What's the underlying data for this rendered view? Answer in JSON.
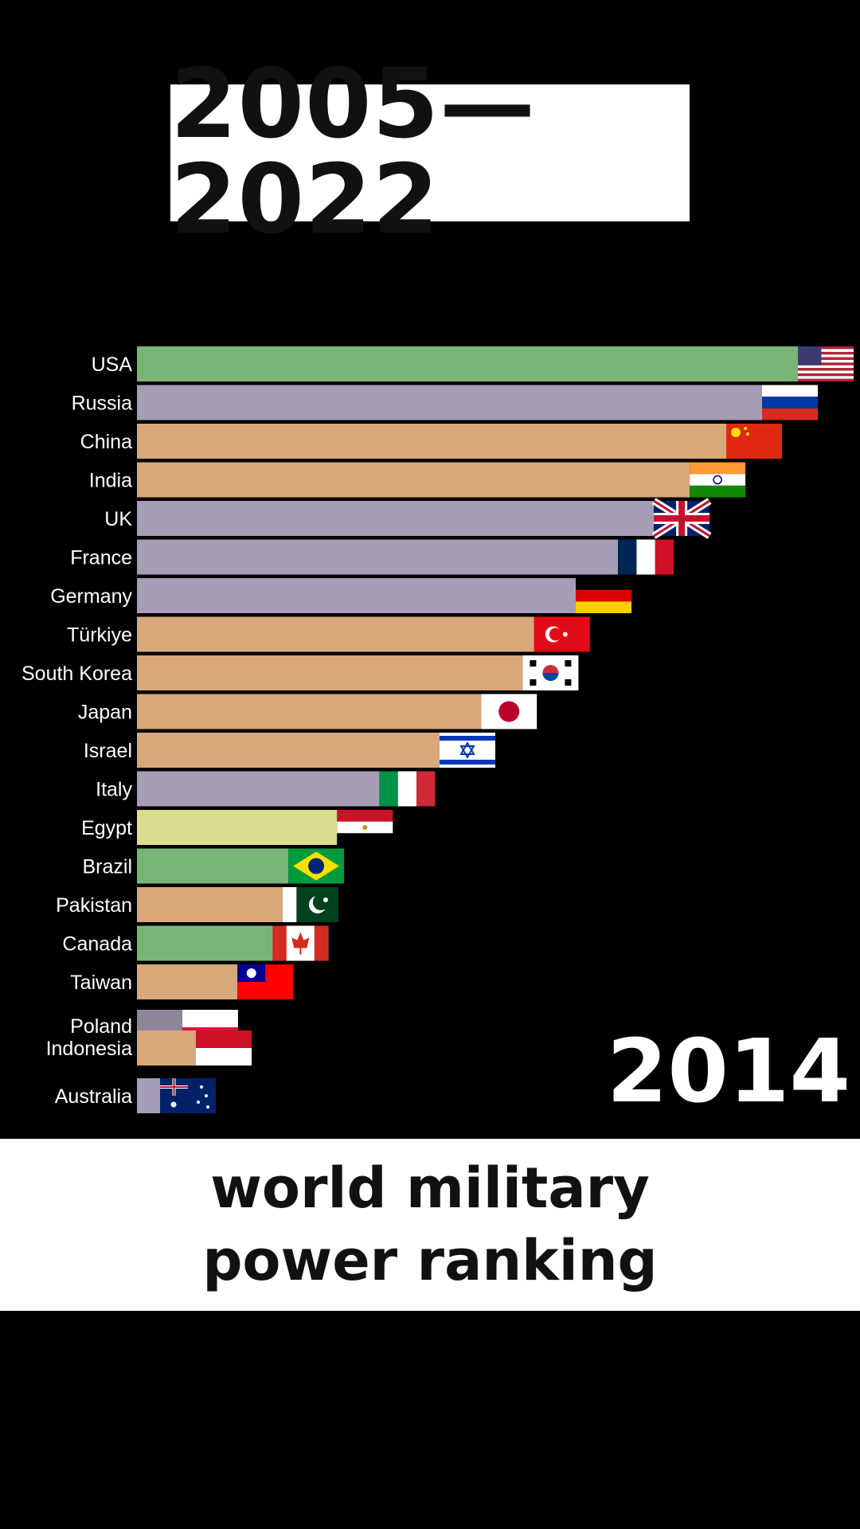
{
  "header": {
    "title": "2005—2022"
  },
  "year_display": "2014",
  "caption": "world military power ranking",
  "colors": {
    "green": "#79b477",
    "purple": "#a79cb6",
    "tan": "#d8a77a",
    "yellow": "#dcdc8e"
  },
  "chart_data": {
    "type": "bar",
    "orientation": "horizontal",
    "title": "",
    "xlabel": "",
    "ylabel": "",
    "categories": [
      "USA",
      "Russia",
      "China",
      "India",
      "UK",
      "France",
      "Germany",
      "Türkiye",
      "South Korea",
      "Japan",
      "Israel",
      "Italy",
      "Egypt",
      "Brazil",
      "Pakistan",
      "Canada",
      "Taiwan",
      "Poland",
      "Indonesia",
      "Australia"
    ],
    "values": [
      100,
      95.0,
      90.0,
      84.9,
      79.9,
      74.9,
      69.0,
      63.2,
      61.6,
      55.8,
      50.0,
      41.6,
      35.7,
      28.9,
      28.1,
      26.7,
      21.8,
      14.1,
      16.0,
      11.0
    ],
    "bar_colors": [
      "green",
      "purple",
      "tan",
      "tan",
      "purple",
      "purple",
      "purple",
      "tan",
      "tan",
      "tan",
      "tan",
      "purple",
      "yellow",
      "green",
      "tan",
      "green",
      "tan",
      "purple",
      "tan",
      "purple"
    ],
    "flags": [
      "usa-flag",
      "russia-flag",
      "china-flag",
      "india-flag",
      "uk-flag",
      "france-flag",
      "germany-flag",
      "turkiye-flag",
      "south-korea-flag",
      "japan-flag",
      "israel-flag",
      "italy-flag",
      "egypt-flag",
      "brazil-flag",
      "pakistan-flag",
      "canada-flag",
      "taiwan-flag",
      "poland-flag",
      "indonesia-flag",
      "australia-flag"
    ],
    "xlim": [
      0,
      100
    ]
  }
}
